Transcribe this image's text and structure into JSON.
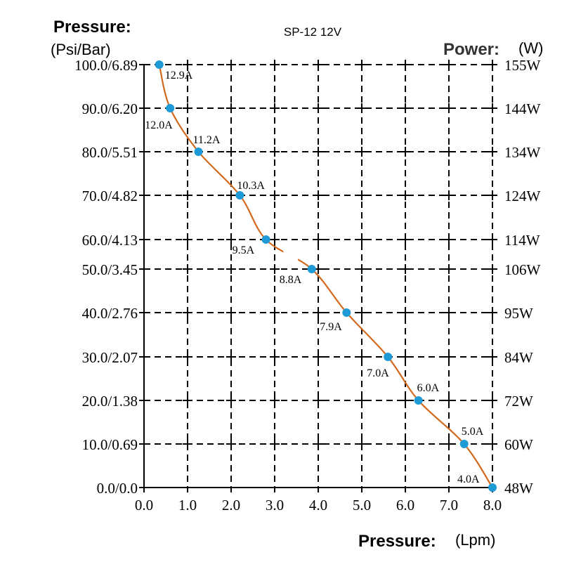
{
  "chart_data": {
    "type": "line",
    "title": "SP-12 12V",
    "ylabel": "Pressure:",
    "ylabel_unit": "(Psi/Bar)",
    "y2label": "Power:",
    "y2label_unit": "(W)",
    "xlabel": "Pressure:",
    "xlabel_unit": "(Lpm)",
    "xlim": [
      0,
      8
    ],
    "ylim": [
      0,
      100
    ],
    "x_ticks": [
      "0.0",
      "1.0",
      "2.0",
      "3.0",
      "4.0",
      "5.0",
      "6.0",
      "7.0",
      "8.0"
    ],
    "y_tick_values": [
      0,
      10,
      20,
      30,
      40,
      50,
      60,
      70,
      80,
      90,
      100
    ],
    "y_ticks": [
      "0.0/0.0",
      "10.0/0.69",
      "20.0/1.38",
      "30.0/2.07",
      "40.0/2.76",
      "50.0/3.45",
      "60.0/4.13",
      "70.0/4.82",
      "80.0/5.51",
      "90.0/6.20",
      "100.0/6.89"
    ],
    "y2_ticks": [
      "48W",
      "60W",
      "72W",
      "84W",
      "95W",
      "106W",
      "114W",
      "124W",
      "134W",
      "144W",
      "155W"
    ],
    "grid": true,
    "series": [
      {
        "color": "#d2691e",
        "point_color": "#1e9bd7",
        "x": [
          0.35,
          0.6,
          1.25,
          2.2,
          2.8,
          3.85,
          4.65,
          5.6,
          6.3,
          7.35,
          8.0
        ],
        "y": [
          100,
          90,
          80,
          70,
          60,
          50,
          40,
          30,
          20,
          10,
          0
        ],
        "labels": [
          "12.9A",
          "12.0A",
          "11.2A",
          "10.3A",
          "9.5A",
          "8.8A",
          "7.9A",
          "7.0A",
          "6.0A",
          "5.0A",
          "4.0A"
        ]
      }
    ]
  }
}
